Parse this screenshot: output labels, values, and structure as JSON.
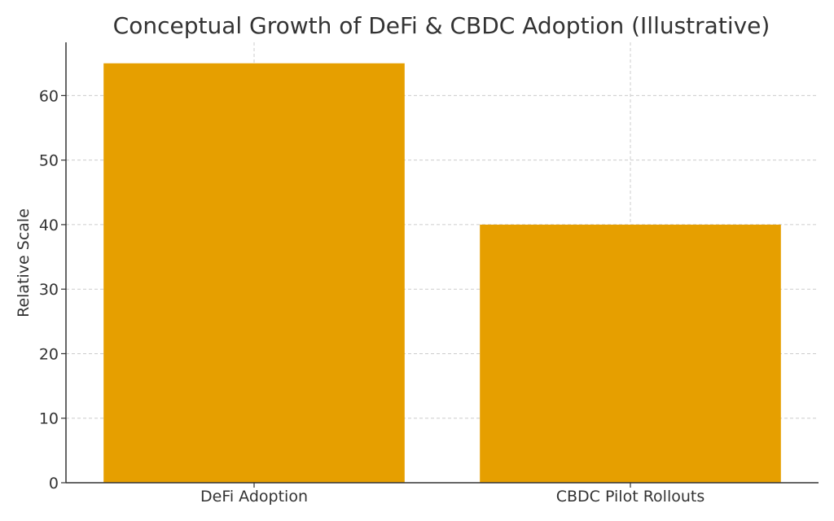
{
  "chart_data": {
    "type": "bar",
    "title": "Conceptual Growth of DeFi & CBDC Adoption (Illustrative)",
    "xlabel": "",
    "ylabel": "Relative Scale",
    "categories": [
      "DeFi Adoption",
      "CBDC Pilot Rollouts"
    ],
    "values": [
      65,
      40
    ],
    "ylim": [
      0,
      68.25
    ],
    "yticks": [
      0,
      10,
      20,
      30,
      40,
      50,
      60
    ],
    "grid": true,
    "bar_color": "#E69F00"
  }
}
